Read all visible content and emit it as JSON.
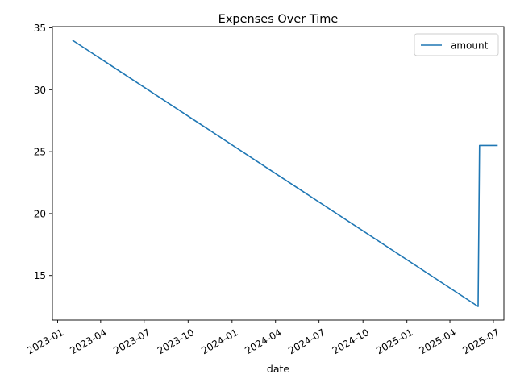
{
  "chart_data": {
    "type": "line",
    "title": "Expenses Over Time",
    "xlabel": "date",
    "ylabel": "",
    "x_axis_type": "date",
    "xlim": [
      "2022-12-21",
      "2025-07-23"
    ],
    "ylim": [
      11.4,
      35.1
    ],
    "x_ticks": [
      "2023-01",
      "2023-04",
      "2023-07",
      "2023-10",
      "2024-01",
      "2024-04",
      "2024-07",
      "2024-10",
      "2025-01",
      "2025-04",
      "2025-07"
    ],
    "y_ticks": [
      15,
      20,
      25,
      30,
      35
    ],
    "grid": false,
    "legend": {
      "position": "top-right",
      "entries": [
        "amount"
      ]
    },
    "series": [
      {
        "name": "amount",
        "color": "#1f77b4",
        "points": [
          {
            "x": "2023-02-01",
            "y": 34.0
          },
          {
            "x": "2025-05-30",
            "y": 12.5
          },
          {
            "x": "2025-06-02",
            "y": 25.5
          },
          {
            "x": "2025-07-10",
            "y": 25.5
          }
        ]
      }
    ]
  }
}
